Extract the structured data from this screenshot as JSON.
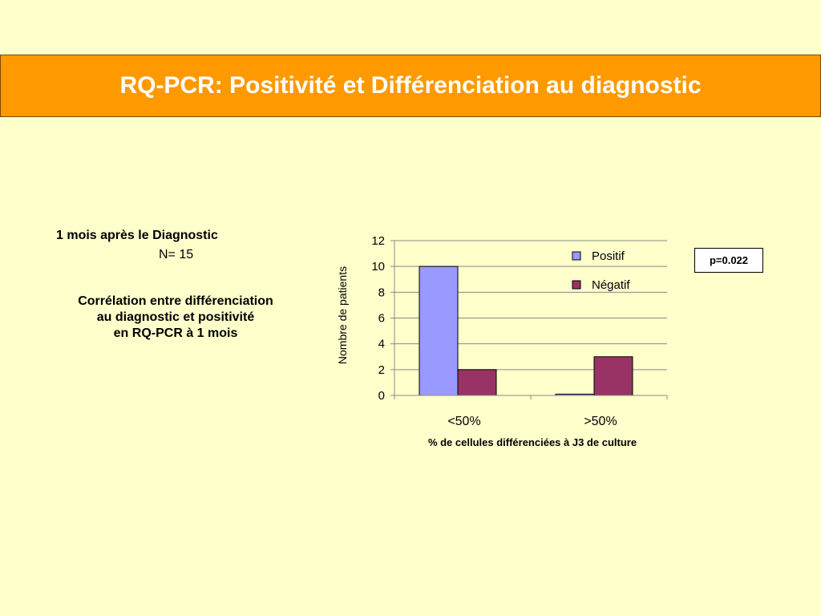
{
  "slide": {
    "title": "RQ-PCR: Positivité et Différenciation au diagnostic"
  },
  "left": {
    "line1": "1 mois après le Diagnostic",
    "line2": "N= 15",
    "para": [
      "Corrélation entre différenciation",
      "au diagnostic et positivité",
      "en RQ-PCR à 1 mois"
    ]
  },
  "pvalue": "p=0.022",
  "chart_data": {
    "type": "bar",
    "categories": [
      "<50%",
      ">50%"
    ],
    "series": [
      {
        "name": "Positif",
        "values": [
          10,
          0.1
        ],
        "color": "#9999FF"
      },
      {
        "name": "Négatif",
        "values": [
          2,
          3
        ],
        "color": "#993366"
      }
    ],
    "ylim": [
      0,
      12
    ],
    "yticks": [
      "0",
      "2",
      "4",
      "6",
      "8",
      "10",
      "12"
    ],
    "ylabel": "Nombre de patients",
    "xlabel": "% de cellules différenciées à J3 de culture",
    "grid": true,
    "legend": "top-right"
  }
}
